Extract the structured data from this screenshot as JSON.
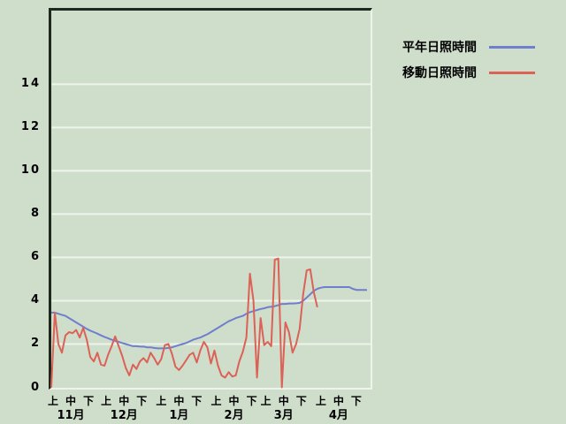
{
  "colors": {
    "background": "#cfdecb",
    "axis_dark": "#1e281e",
    "grid_light": "#eef4ec",
    "normal_line": "#6f7ecd",
    "moving_line": "#dc6156"
  },
  "legend": {
    "items": [
      {
        "label": "平年日照時間",
        "color": "#6f7ecd"
      },
      {
        "label": "移動日照時間",
        "color": "#dc6156"
      }
    ]
  },
  "chart_data": {
    "type": "line",
    "title": "",
    "xlabel": "",
    "ylabel": "",
    "grid": "horizontal-only",
    "legend_position": "top-right-outside",
    "y_ticks": [
      0,
      2,
      4,
      6,
      8,
      10,
      12,
      14
    ],
    "ylim": [
      0,
      17.4
    ],
    "xlim_days": [
      0,
      181
    ],
    "months": [
      {
        "label": "11月",
        "days": 30
      },
      {
        "label": "12月",
        "days": 31
      },
      {
        "label": "1月",
        "days": 31
      },
      {
        "label": "2月",
        "days": 28
      },
      {
        "label": "3月",
        "days": 31
      },
      {
        "label": "4月",
        "days": 30
      }
    ],
    "period_labels": [
      "上",
      "中",
      "下"
    ],
    "period_day_offsets": [
      1,
      11,
      21
    ],
    "series": [
      {
        "name": "平年日照時間",
        "color": "#6f7ecd",
        "start_day": 0,
        "step_days": 2,
        "values": [
          3.45,
          3.45,
          3.4,
          3.35,
          3.3,
          3.2,
          3.1,
          3.0,
          2.9,
          2.8,
          2.7,
          2.62,
          2.55,
          2.48,
          2.4,
          2.33,
          2.27,
          2.2,
          2.15,
          2.1,
          2.05,
          2.0,
          1.95,
          1.9,
          1.9,
          1.88,
          1.88,
          1.85,
          1.85,
          1.82,
          1.8,
          1.8,
          1.8,
          1.82,
          1.85,
          1.9,
          1.95,
          2.0,
          2.05,
          2.12,
          2.2,
          2.25,
          2.3,
          2.38,
          2.45,
          2.55,
          2.65,
          2.75,
          2.85,
          2.95,
          3.05,
          3.12,
          3.2,
          3.25,
          3.3,
          3.4,
          3.47,
          3.52,
          3.57,
          3.62,
          3.65,
          3.7,
          3.72,
          3.75,
          3.8,
          3.85,
          3.85,
          3.87,
          3.87,
          3.88,
          3.9,
          4.0,
          4.15,
          4.3,
          4.45,
          4.55,
          4.6,
          4.63,
          4.63,
          4.63,
          4.63,
          4.63,
          4.63,
          4.63,
          4.63,
          4.55,
          4.5,
          4.5,
          4.5,
          4.5
        ]
      },
      {
        "name": "移動日照時間",
        "color": "#dc6156",
        "start_day": 0,
        "step_days": 2,
        "values": [
          0.0,
          3.45,
          2.0,
          1.6,
          2.4,
          2.55,
          2.5,
          2.65,
          2.3,
          2.75,
          2.2,
          1.4,
          1.2,
          1.6,
          1.05,
          1.0,
          1.5,
          1.9,
          2.35,
          1.9,
          1.45,
          0.9,
          0.55,
          1.05,
          0.85,
          1.2,
          1.35,
          1.15,
          1.6,
          1.35,
          1.05,
          1.3,
          1.95,
          2.0,
          1.55,
          0.95,
          0.8,
          1.0,
          1.25,
          1.5,
          1.6,
          1.15,
          1.7,
          2.1,
          1.85,
          1.1,
          1.7,
          1.0,
          0.55,
          0.45,
          0.7,
          0.5,
          0.55,
          1.2,
          1.65,
          2.3,
          5.25,
          4.0,
          0.45,
          3.2,
          1.95,
          2.1,
          1.9,
          5.9,
          5.95,
          0.0,
          3.0,
          2.55,
          1.6,
          2.0,
          2.7,
          4.3,
          5.4,
          5.45,
          4.4,
          3.7
        ]
      }
    ]
  }
}
